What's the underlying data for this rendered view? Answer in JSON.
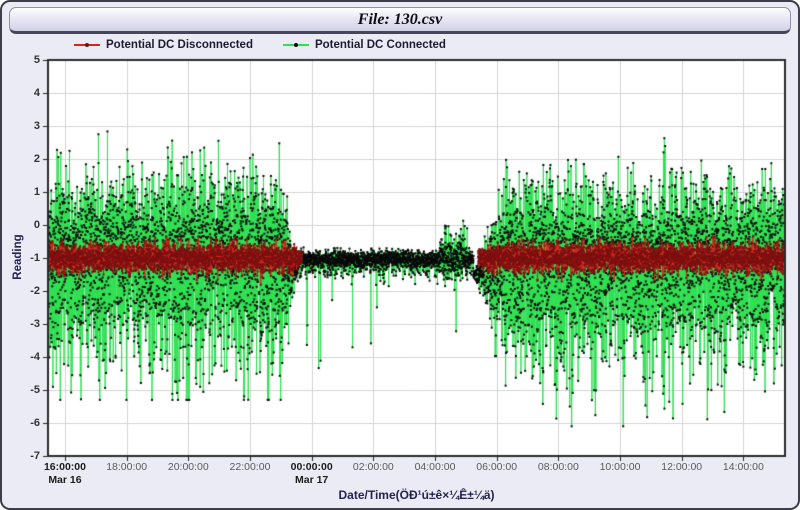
{
  "header": {
    "title": "File: 130.csv"
  },
  "colors": {
    "window_bg": "#ebebf6",
    "plot_bg": "#ffffff",
    "grid": "#d4d4d4",
    "frame": "#2a2a2a",
    "tick_mark": "#222222",
    "tick_label": "#5a5a5a",
    "tick_label_emph": "#1b1b1b",
    "axis_title": "#23234f",
    "legend_text": "#1c1c2e"
  },
  "chart_data": {
    "type": "scatter",
    "title": "File: 130.csv",
    "xlabel": "Date/Time(ÖÐ¹ú±ê×¼Ê±¼ä)",
    "ylabel": "Reading",
    "ylim": [
      -7,
      5
    ],
    "yticks": [
      5,
      4,
      3,
      2,
      1,
      0,
      -1,
      -2,
      -3,
      -4,
      -5,
      -6,
      -7
    ],
    "x_domain_hours": [
      15.45,
      39.35
    ],
    "xticks": [
      {
        "hour": 16,
        "label": "16:00:00",
        "day": "Mar 16",
        "emphasis": true
      },
      {
        "hour": 18,
        "label": "18:00:00"
      },
      {
        "hour": 20,
        "label": "20:00:00"
      },
      {
        "hour": 22,
        "label": "22:00:00"
      },
      {
        "hour": 24,
        "label": "00:00:00",
        "day": "Mar 17",
        "emphasis": true
      },
      {
        "hour": 26,
        "label": "02:00:00"
      },
      {
        "hour": 28,
        "label": "04:00:00"
      },
      {
        "hour": 30,
        "label": "06:00:00"
      },
      {
        "hour": 32,
        "label": "08:00:00"
      },
      {
        "hour": 34,
        "label": "10:00:00"
      },
      {
        "hour": 36,
        "label": "12:00:00"
      },
      {
        "hour": 38,
        "label": "14:00:00"
      }
    ],
    "grid": true,
    "legend_position": "top-left",
    "series": [
      {
        "name": "Potential DC Disconnected",
        "kind": "band",
        "line_color": "#cd2a20",
        "marker_color": "#7c1010",
        "summary": "Dense band centered near -1.0 (about -0.4 to -1.8); present only during active cycling, absent from ~23:40 Mar 16 to ~05:20 Mar 17",
        "segments": [
          {
            "t0": 15.45,
            "t1": 23.68,
            "base": -1.0,
            "sd": 0.22,
            "ramp_in": 0.05,
            "ramp_out": 0.35
          },
          {
            "t0": 29.4,
            "t1": 39.35,
            "base": -1.0,
            "sd": 0.22,
            "ramp_in": 0.5,
            "ramp_out": 0.05
          }
        ]
      },
      {
        "name": "Potential DC Connected",
        "kind": "noise",
        "line_color": "#2fe052",
        "marker_color": "#0a0a0a",
        "summary": "Very noisy readings: spikes up to ~+3.8 and down to ~-5.3 before 23:40; tight quiet band ~-1.05 with sparse dips to ~-4.4 until 05:20; then spikes up to ~+3.1 and down to ~-6.1 through end",
        "segments": [
          {
            "t0": 15.45,
            "t1": 23.55,
            "mode": "active",
            "base": -1.4,
            "up_max": 3.8,
            "down_max": -5.3,
            "ramp_in": 0.05,
            "ramp_out": 0.55
          },
          {
            "t0": 23.55,
            "t1": 29.25,
            "mode": "quiet",
            "base": -1.05,
            "sd": 0.13,
            "down_max": -4.4,
            "down_spike_prob": 0.007,
            "burst_t0": 28.15,
            "burst_t1": 29.05
          },
          {
            "t0": 29.25,
            "t1": 39.35,
            "mode": "active",
            "base": -1.5,
            "up_max": 3.1,
            "down_max": -6.1,
            "ramp_in": 1.1,
            "ramp_out": 0.05
          }
        ]
      }
    ],
    "render": {
      "seed": 20240316,
      "total_points": 7500,
      "marker_px": 2
    }
  }
}
